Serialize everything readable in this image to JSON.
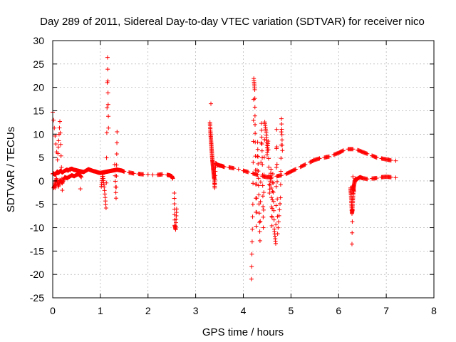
{
  "chart_data": {
    "type": "scatter",
    "title": "Day 289 of 2011, Sidereal Day-to-day VTEC variation (SDTVAR) for receiver nico",
    "xlabel": "GPS time / hours",
    "ylabel": "SDTVAR / TECUs",
    "xlim": [
      0,
      8
    ],
    "ylim": [
      -25,
      30
    ],
    "xticks": [
      0,
      1,
      2,
      3,
      4,
      5,
      6,
      7,
      8
    ],
    "yticks": [
      -25,
      -20,
      -15,
      -10,
      -5,
      0,
      5,
      10,
      15,
      20,
      25,
      30
    ],
    "grid": true,
    "marker": "+",
    "color": "#ff0000",
    "series": [
      {
        "name": "SDTVAR",
        "x": [
          0.0,
          0.02,
          0.04,
          0.06,
          0.08,
          0.1,
          0.12,
          0.14,
          0.16,
          0.18,
          0.2,
          0.24,
          0.28,
          0.3,
          0.32,
          0.36,
          0.4,
          0.44,
          0.48,
          0.52,
          0.56,
          0.6,
          0.65,
          0.7,
          0.75,
          0.8,
          0.85,
          0.9,
          0.95,
          1.0,
          1.05,
          1.1,
          1.15,
          1.2,
          1.25,
          1.3,
          1.35,
          1.4,
          1.45,
          1.5,
          1.6,
          1.7,
          1.8,
          1.9,
          2.0,
          2.1,
          2.2,
          2.3,
          2.4,
          2.45,
          2.5,
          2.52,
          0.02,
          0.05,
          0.08,
          0.12,
          0.15,
          0.2,
          0.25,
          0.3,
          0.35,
          0.4,
          0.45,
          0.5,
          0.55,
          0.6,
          3.3,
          3.31,
          3.32,
          3.33,
          3.34,
          3.35,
          3.36,
          3.37,
          3.38,
          3.39,
          3.4,
          3.42,
          3.45,
          3.5,
          3.55,
          3.6,
          3.7,
          3.8,
          3.9,
          4.0,
          4.1,
          4.2,
          4.3,
          4.4,
          4.5,
          4.6,
          4.7,
          4.8,
          4.9,
          5.0,
          5.1,
          5.2,
          5.3,
          5.4,
          5.5,
          5.6,
          5.7,
          5.8,
          5.9,
          6.0,
          6.1,
          6.2,
          6.3,
          6.4,
          6.5,
          6.6,
          6.7,
          6.8,
          6.9,
          7.0,
          7.1,
          7.2,
          6.25,
          6.26,
          6.27,
          6.28,
          6.29,
          6.3,
          6.31,
          6.32,
          6.34,
          6.36,
          6.38,
          6.4,
          6.45,
          6.5,
          6.6,
          6.7,
          6.8,
          6.9,
          7.0,
          7.1,
          7.2,
          0.0,
          0.1,
          0.15,
          0.2,
          0.05,
          0.38,
          0.58,
          1.02,
          1.05,
          1.08,
          1.12,
          1.15,
          1.17,
          1.3,
          1.33,
          1.35,
          2.55,
          2.56,
          2.58,
          2.6,
          3.32,
          4.17,
          4.2,
          4.22,
          4.24,
          4.25,
          4.27,
          4.3,
          4.32,
          4.35,
          4.38,
          4.4,
          4.42,
          4.45,
          4.48,
          4.5,
          4.5,
          4.52,
          4.55,
          4.58,
          4.6,
          4.62,
          4.65,
          4.68,
          4.7,
          4.72,
          4.78,
          4.8,
          4.82,
          6.28,
          6.3,
          6.3,
          6.32
        ]
      }
    ],
    "y_values": [
      1.5,
      1.6,
      1.4,
      1.3,
      1.8,
      2.0,
      1.7,
      1.9,
      2.2,
      2.0,
      1.8,
      2.1,
      2.3,
      2.4,
      2.2,
      2.5,
      2.6,
      2.4,
      2.3,
      2.2,
      2.1,
      2.0,
      1.9,
      2.2,
      2.5,
      2.3,
      2.1,
      2.0,
      1.8,
      1.7,
      1.8,
      1.9,
      2.0,
      2.1,
      2.2,
      2.3,
      2.4,
      2.3,
      2.2,
      2.0,
      1.8,
      1.6,
      1.5,
      1.4,
      1.4,
      1.3,
      1.3,
      1.4,
      1.3,
      1.2,
      1.0,
      0.5,
      -1.5,
      -0.8,
      0.5,
      -1.2,
      0.2,
      -0.5,
      0.8,
      0.6,
      0.9,
      1.2,
      1.0,
      1.3,
      1.5,
      0.8,
      12.5,
      10.5,
      9.0,
      7.5,
      6.0,
      4.5,
      3.5,
      2.5,
      1.5,
      0.5,
      -1.5,
      3.8,
      3.5,
      3.3,
      3.2,
      3.0,
      2.9,
      2.7,
      2.5,
      2.2,
      1.9,
      1.6,
      1.3,
      1.0,
      0.8,
      0.8,
      1.0,
      1.2,
      1.5,
      2.0,
      2.5,
      3.0,
      3.5,
      4.0,
      4.5,
      4.8,
      5.0,
      5.2,
      5.6,
      6.0,
      6.5,
      6.8,
      6.8,
      6.6,
      6.2,
      5.8,
      5.4,
      5.0,
      4.8,
      4.6,
      4.4,
      4.3,
      -1.5,
      -3.0,
      -5.0,
      -7.0,
      -6.0,
      -4.0,
      -2.0,
      -1.0,
      0.0,
      0.5,
      0.3,
      0.5,
      0.8,
      0.6,
      0.4,
      0.5,
      0.6,
      0.8,
      0.9,
      0.8,
      0.7,
      14.7,
      4.5,
      12.7,
      -2.0,
      -1.5,
      2.3,
      -1.7,
      -1.2,
      1.4,
      -1.3,
      -5.8,
      26.4,
      11.3,
      3.5,
      -3.7,
      10.5,
      -2.6,
      -9.5,
      -10.4,
      -6.0,
      16.5,
      -21.0,
      -5.0,
      21.9,
      19.5,
      8.3,
      -9.7,
      8.3,
      -1.0,
      -12.8,
      12.3,
      3.5,
      -10.0,
      12.6,
      10.3,
      7.1,
      5.6,
      8.5,
      -2.6,
      2.5,
      -9.6,
      1.5,
      -10.3,
      -13.4,
      11.0,
      -11.3,
      -3.6,
      13.3,
      6.5,
      -13.5,
      0.9,
      -1.1,
      -2.3
    ]
  }
}
